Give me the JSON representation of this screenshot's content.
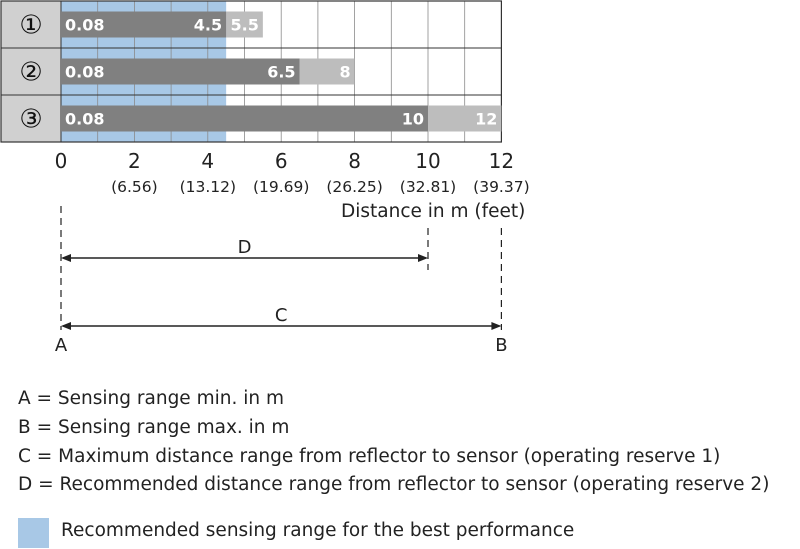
{
  "chart_data": {
    "type": "bar",
    "rows": [
      {
        "id": "①",
        "min": 0.08,
        "max_reserve_2": 4.5,
        "max_reserve_1": 5.5,
        "min_label": "0.08",
        "reserve_2_label": "4.5",
        "reserve_1_label": "5.5"
      },
      {
        "id": "②",
        "min": 0.08,
        "max_reserve_2": 6.5,
        "max_reserve_1": 8,
        "min_label": "0.08",
        "reserve_2_label": "6.5",
        "reserve_1_label": "8"
      },
      {
        "id": "③",
        "min": 0.08,
        "max_reserve_2": 10,
        "max_reserve_1": 12,
        "min_label": "0.08",
        "reserve_2_label": "10",
        "reserve_1_label": "12"
      }
    ],
    "recommended_range": [
      0,
      4.5
    ],
    "xlim": [
      0,
      12
    ],
    "x_ticks": [
      {
        "value": 0,
        "label": "0",
        "feet": ""
      },
      {
        "value": 2,
        "label": "2",
        "feet": "(6.56)"
      },
      {
        "value": 4,
        "label": "4",
        "feet": "(13.12)"
      },
      {
        "value": 6,
        "label": "6",
        "feet": "(19.69)"
      },
      {
        "value": 8,
        "label": "8",
        "feet": "(26.25)"
      },
      {
        "value": 10,
        "label": "10",
        "feet": "(32.81)"
      },
      {
        "value": 12,
        "label": "12",
        "feet": "(39.37)"
      }
    ],
    "xlabel": "Distance in m (feet)"
  },
  "dimension_lines": {
    "d_label": "D",
    "c_label": "C",
    "a_label": "A",
    "b_label": "B"
  },
  "legend": {
    "items": [
      "A = Sensing range min. in m",
      "B = Sensing range max. in m",
      "C = Maximum distance range from reflector to sensor (operating reserve 1)",
      "D = Recommended distance range from reflector to sensor (operating reserve 2)"
    ],
    "swatch_text": "Recommended sensing range for the best performance"
  },
  "colors": {
    "recommended": "#a8c8e6",
    "reserve_2": "#808080",
    "reserve_1": "#bdbdbd",
    "grid": "#8a8a8a",
    "label_col": "#d0d0d0",
    "text": "#222222"
  }
}
